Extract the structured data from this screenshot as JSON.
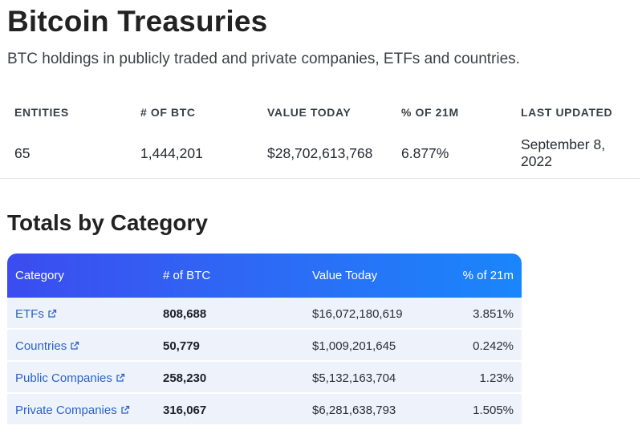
{
  "header": {
    "title": "Bitcoin Treasuries",
    "subtitle": "BTC holdings in publicly traded and private companies, ETFs and countries."
  },
  "stats": {
    "entities_label": "ENTITIES",
    "entities_value": "65",
    "btc_label": "# OF BTC",
    "btc_value": "1,444,201",
    "value_label": "VALUE TODAY",
    "value_value": "$28,702,613,768",
    "pct_label": "% OF 21M",
    "pct_value": "6.877%",
    "updated_label": "LAST UPDATED",
    "updated_value": "September 8, 2022"
  },
  "categories": {
    "title": "Totals by Category",
    "columns": [
      "Category",
      "# of BTC",
      "Value Today",
      "% of 21m"
    ],
    "rows": [
      {
        "category": "ETFs",
        "btc": "808,688",
        "value": "$16,072,180,619",
        "pct": "3.851%"
      },
      {
        "category": "Countries",
        "btc": "50,779",
        "value": "$1,009,201,645",
        "pct": "0.242%"
      },
      {
        "category": "Public Companies",
        "btc": "258,230",
        "value": "$5,132,163,704",
        "pct": "1.23%"
      },
      {
        "category": "Private Companies",
        "btc": "316,067",
        "value": "$6,281,638,793",
        "pct": "1.505%"
      }
    ]
  },
  "colors": {
    "header_gradient_start": "#3b4cf0",
    "header_gradient_end": "#1a86fb",
    "row_background": "#eef2fb",
    "link": "#2a63c9"
  },
  "icons": {
    "category_link": "external-link-icon"
  }
}
